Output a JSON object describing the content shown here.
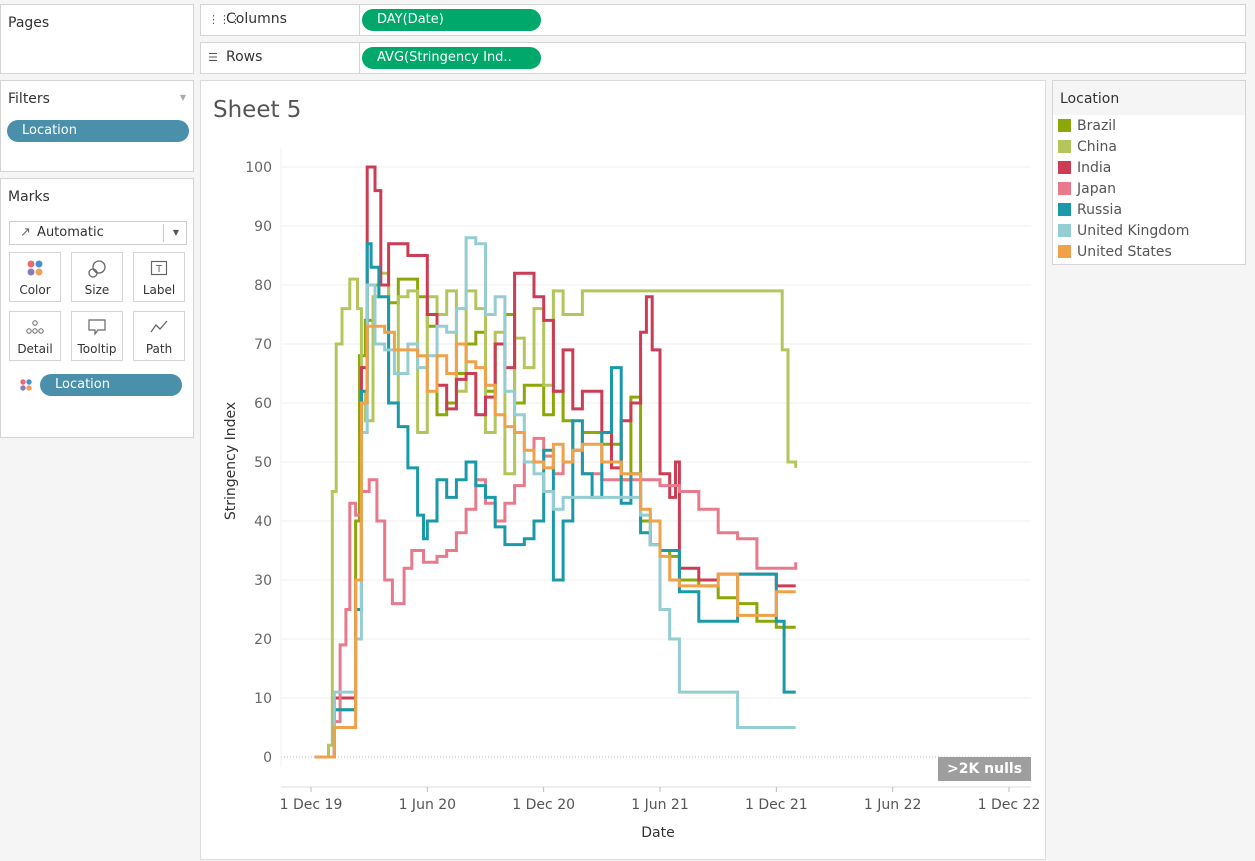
{
  "pages": {
    "title": "Pages"
  },
  "shelves": {
    "columns_label": "Columns",
    "columns_pill": "DAY(Date)",
    "rows_label": "Rows",
    "rows_pill": "AVG(Stringency Ind.."
  },
  "filters": {
    "title": "Filters",
    "pill": "Location"
  },
  "marks": {
    "title": "Marks",
    "type": "Automatic",
    "buttons": [
      "Color",
      "Size",
      "Label",
      "Detail",
      "Tooltip",
      "Path"
    ],
    "pill": "Location"
  },
  "sheet": {
    "title": "Sheet 5",
    "nulls_badge": ">2K nulls"
  },
  "legend": {
    "title": "Location",
    "items": [
      {
        "label": "Brazil",
        "color": "#8ba708"
      },
      {
        "label": "China",
        "color": "#b4c65b"
      },
      {
        "label": "India",
        "color": "#cc3c54"
      },
      {
        "label": "Japan",
        "color": "#e87a8b"
      },
      {
        "label": "Russia",
        "color": "#1a9aa8"
      },
      {
        "label": "United Kingdom",
        "color": "#94cdd2"
      },
      {
        "label": "United States",
        "color": "#f0a14a"
      }
    ]
  },
  "chart_data": {
    "type": "line",
    "xlabel": "Date",
    "ylabel": "Stringency Index",
    "x_ticks": [
      "1 Dec 19",
      "1 Jun 20",
      "1 Dec 20",
      "1 Jun 21",
      "1 Dec 21",
      "1 Jun 22",
      "1 Dec 22"
    ],
    "ylim": [
      0,
      100
    ],
    "y_ticks": [
      0,
      10,
      20,
      30,
      40,
      50,
      60,
      70,
      80,
      90,
      100
    ],
    "x_unit": "months since Dec 2019",
    "series": [
      {
        "name": "Brazil",
        "color": "#8ba708",
        "points": [
          [
            0.2,
            0
          ],
          [
            1,
            0
          ],
          [
            1.2,
            8
          ],
          [
            2,
            8
          ],
          [
            2.3,
            40
          ],
          [
            2.5,
            68
          ],
          [
            2.8,
            74
          ],
          [
            3.3,
            80
          ],
          [
            4,
            77
          ],
          [
            4.5,
            81
          ],
          [
            5.5,
            78
          ],
          [
            6,
            73
          ],
          [
            6.5,
            58
          ],
          [
            7,
            60
          ],
          [
            7.5,
            65
          ],
          [
            8,
            70
          ],
          [
            8.5,
            72
          ],
          [
            9,
            62
          ],
          [
            9.5,
            70
          ],
          [
            10,
            75
          ],
          [
            10.5,
            60
          ],
          [
            11,
            63
          ],
          [
            12,
            58
          ],
          [
            12.5,
            62
          ],
          [
            13,
            57
          ],
          [
            13.5,
            52
          ],
          [
            14,
            55
          ],
          [
            14.5,
            55
          ],
          [
            15,
            53
          ],
          [
            16,
            47
          ],
          [
            16.5,
            61
          ],
          [
            17,
            40
          ],
          [
            17.5,
            36
          ],
          [
            18,
            35
          ],
          [
            18.5,
            34
          ],
          [
            19,
            30
          ],
          [
            20,
            29
          ],
          [
            21,
            27
          ],
          [
            22,
            26
          ],
          [
            23,
            23
          ],
          [
            24,
            22
          ],
          [
            25,
            22
          ]
        ]
      },
      {
        "name": "China",
        "color": "#b4c65b",
        "points": [
          [
            0.2,
            0
          ],
          [
            0.9,
            2
          ],
          [
            1.1,
            45
          ],
          [
            1.3,
            70
          ],
          [
            1.6,
            76
          ],
          [
            2,
            81
          ],
          [
            2.4,
            76
          ],
          [
            2.6,
            62
          ],
          [
            2.8,
            57
          ],
          [
            3.2,
            78
          ],
          [
            3.5,
            82
          ],
          [
            4,
            60
          ],
          [
            4.5,
            78
          ],
          [
            5,
            79
          ],
          [
            5.5,
            55
          ],
          [
            6,
            78
          ],
          [
            6.5,
            75
          ],
          [
            7,
            79
          ],
          [
            7.5,
            62
          ],
          [
            8,
            79
          ],
          [
            8.5,
            76
          ],
          [
            9,
            55
          ],
          [
            9.5,
            72
          ],
          [
            10,
            48
          ],
          [
            10.5,
            71
          ],
          [
            11,
            66
          ],
          [
            11.5,
            76
          ],
          [
            12,
            63
          ],
          [
            12.5,
            79
          ],
          [
            13,
            75
          ],
          [
            14,
            79
          ],
          [
            16,
            79
          ],
          [
            18,
            79
          ],
          [
            20,
            79
          ],
          [
            22,
            79
          ],
          [
            24,
            79
          ],
          [
            24.3,
            69
          ],
          [
            24.6,
            50
          ],
          [
            25,
            49
          ]
        ]
      },
      {
        "name": "India",
        "color": "#cc3c54",
        "points": [
          [
            0.2,
            0
          ],
          [
            1,
            0
          ],
          [
            1.2,
            10
          ],
          [
            2,
            10
          ],
          [
            2.3,
            30
          ],
          [
            2.6,
            66
          ],
          [
            2.9,
            100
          ],
          [
            3.3,
            96
          ],
          [
            3.6,
            80
          ],
          [
            4,
            87
          ],
          [
            5,
            85
          ],
          [
            6,
            75
          ],
          [
            6.5,
            63
          ],
          [
            7,
            59
          ],
          [
            7.5,
            64
          ],
          [
            8,
            65
          ],
          [
            8.5,
            58
          ],
          [
            9,
            61
          ],
          [
            9.5,
            70
          ],
          [
            10,
            66
          ],
          [
            10.5,
            82
          ],
          [
            11.5,
            78
          ],
          [
            12,
            74
          ],
          [
            12.5,
            62
          ],
          [
            13,
            69
          ],
          [
            13.5,
            59
          ],
          [
            14,
            62
          ],
          [
            15,
            55
          ],
          [
            15.5,
            49
          ],
          [
            16,
            57
          ],
          [
            16.5,
            60
          ],
          [
            17,
            72
          ],
          [
            17.3,
            78
          ],
          [
            17.6,
            69
          ],
          [
            18,
            48
          ],
          [
            18.5,
            44
          ],
          [
            18.8,
            50
          ],
          [
            19,
            32
          ],
          [
            20,
            30
          ],
          [
            21,
            31
          ],
          [
            22,
            31
          ],
          [
            24,
            29
          ],
          [
            25,
            29
          ]
        ]
      },
      {
        "name": "Japan",
        "color": "#e87a8b",
        "points": [
          [
            0.2,
            0
          ],
          [
            1,
            0
          ],
          [
            1.2,
            6
          ],
          [
            1.5,
            19
          ],
          [
            1.8,
            25
          ],
          [
            2,
            43
          ],
          [
            2.3,
            41
          ],
          [
            2.6,
            45
          ],
          [
            3,
            47
          ],
          [
            3.4,
            40
          ],
          [
            3.8,
            30
          ],
          [
            4.2,
            26
          ],
          [
            4.8,
            32
          ],
          [
            5.2,
            35
          ],
          [
            5.8,
            33
          ],
          [
            6.5,
            34
          ],
          [
            7,
            35
          ],
          [
            7.5,
            38
          ],
          [
            8,
            42
          ],
          [
            8.5,
            47
          ],
          [
            9,
            43
          ],
          [
            9.5,
            40
          ],
          [
            10,
            43
          ],
          [
            10.5,
            46
          ],
          [
            11,
            50
          ],
          [
            11.5,
            54
          ],
          [
            12,
            51
          ],
          [
            12.5,
            48
          ],
          [
            13,
            50
          ],
          [
            13.5,
            52
          ],
          [
            14,
            48
          ],
          [
            15,
            47
          ],
          [
            16,
            47
          ],
          [
            17,
            47
          ],
          [
            18,
            46
          ],
          [
            19,
            45
          ],
          [
            20,
            42
          ],
          [
            21,
            38
          ],
          [
            22,
            37
          ],
          [
            23,
            32
          ],
          [
            24,
            32
          ],
          [
            25,
            33
          ]
        ]
      },
      {
        "name": "Russia",
        "color": "#1a9aa8",
        "points": [
          [
            0.2,
            0
          ],
          [
            1,
            0
          ],
          [
            1.2,
            8
          ],
          [
            2,
            8
          ],
          [
            2.3,
            25
          ],
          [
            2.6,
            62
          ],
          [
            2.9,
            87
          ],
          [
            3.1,
            83
          ],
          [
            3.5,
            78
          ],
          [
            4,
            60
          ],
          [
            4.5,
            56
          ],
          [
            5,
            49
          ],
          [
            5.5,
            41
          ],
          [
            5.8,
            37
          ],
          [
            6,
            40
          ],
          [
            6.5,
            47
          ],
          [
            7,
            44
          ],
          [
            7.5,
            47
          ],
          [
            8,
            50
          ],
          [
            8.5,
            46
          ],
          [
            9,
            44
          ],
          [
            9.5,
            39
          ],
          [
            10,
            36
          ],
          [
            11,
            37
          ],
          [
            11.5,
            40
          ],
          [
            12,
            52
          ],
          [
            12.5,
            30
          ],
          [
            13,
            40
          ],
          [
            13.5,
            57
          ],
          [
            14,
            48
          ],
          [
            14.5,
            44
          ],
          [
            15,
            55
          ],
          [
            15.5,
            66
          ],
          [
            16,
            43
          ],
          [
            16.5,
            48
          ],
          [
            17,
            38
          ],
          [
            17.5,
            36
          ],
          [
            18,
            35
          ],
          [
            19,
            28
          ],
          [
            20,
            23
          ],
          [
            21,
            23
          ],
          [
            22,
            31
          ],
          [
            23,
            31
          ],
          [
            24,
            23
          ],
          [
            24.4,
            11
          ],
          [
            25,
            11
          ]
        ]
      },
      {
        "name": "United Kingdom",
        "color": "#94cdd2",
        "points": [
          [
            0.2,
            0
          ],
          [
            1,
            0
          ],
          [
            1.2,
            11
          ],
          [
            2,
            11
          ],
          [
            2.3,
            20
          ],
          [
            2.6,
            55
          ],
          [
            2.9,
            80
          ],
          [
            3.3,
            70
          ],
          [
            3.8,
            69
          ],
          [
            4.3,
            65
          ],
          [
            5,
            70
          ],
          [
            5.5,
            66
          ],
          [
            6,
            68
          ],
          [
            6.5,
            73
          ],
          [
            7,
            72
          ],
          [
            7.5,
            76
          ],
          [
            8,
            88
          ],
          [
            8.5,
            87
          ],
          [
            9,
            75
          ],
          [
            9.5,
            78
          ],
          [
            10,
            62
          ],
          [
            10.5,
            58
          ],
          [
            11,
            50
          ],
          [
            11.5,
            48
          ],
          [
            12,
            45
          ],
          [
            12.5,
            42
          ],
          [
            13,
            44
          ],
          [
            13.5,
            44
          ],
          [
            14,
            44
          ],
          [
            15,
            44
          ],
          [
            16,
            44
          ],
          [
            17,
            41
          ],
          [
            17.5,
            36
          ],
          [
            18,
            25
          ],
          [
            18.5,
            20
          ],
          [
            19,
            11
          ],
          [
            20,
            11
          ],
          [
            21,
            11
          ],
          [
            22,
            5
          ],
          [
            23,
            5
          ],
          [
            24,
            5
          ],
          [
            25,
            5
          ]
        ]
      },
      {
        "name": "United States",
        "color": "#f0a14a",
        "points": [
          [
            0.2,
            0
          ],
          [
            1,
            0
          ],
          [
            1.2,
            5
          ],
          [
            2,
            5
          ],
          [
            2.3,
            30
          ],
          [
            2.6,
            60
          ],
          [
            2.9,
            73
          ],
          [
            3.3,
            73
          ],
          [
            3.8,
            72
          ],
          [
            4.3,
            69
          ],
          [
            5,
            69
          ],
          [
            5.5,
            68
          ],
          [
            6,
            62
          ],
          [
            6.5,
            68
          ],
          [
            7,
            65
          ],
          [
            7.5,
            70
          ],
          [
            8,
            67
          ],
          [
            8.5,
            66
          ],
          [
            9,
            63
          ],
          [
            9.5,
            58
          ],
          [
            10,
            56
          ],
          [
            10.5,
            55
          ],
          [
            11,
            52
          ],
          [
            11.5,
            50
          ],
          [
            12,
            49
          ],
          [
            12.5,
            53
          ],
          [
            13,
            50
          ],
          [
            13.5,
            52
          ],
          [
            14,
            53
          ],
          [
            15,
            50
          ],
          [
            16,
            48
          ],
          [
            17,
            42
          ],
          [
            17.5,
            40
          ],
          [
            18,
            34
          ],
          [
            18.5,
            30
          ],
          [
            19,
            29
          ],
          [
            20,
            29
          ],
          [
            21,
            31
          ],
          [
            22,
            24
          ],
          [
            23,
            24
          ],
          [
            24,
            28
          ],
          [
            25,
            28
          ]
        ]
      }
    ]
  }
}
